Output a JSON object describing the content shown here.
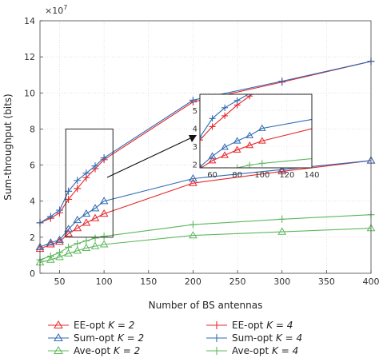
{
  "chart_data": {
    "type": "line",
    "title": "",
    "xlabel": "Number of BS antennas",
    "ylabel": "Sum-throughput (bits)",
    "y_multiplier_label": "×10",
    "y_multiplier_exp": "7",
    "xlim": [
      28,
      400
    ],
    "ylim": [
      0,
      14
    ],
    "grid": true,
    "x_ticks": [
      "50",
      "100",
      "150",
      "200",
      "250",
      "300",
      "350",
      "400"
    ],
    "x_tick_values": [
      50,
      100,
      150,
      200,
      250,
      300,
      350,
      400
    ],
    "y_ticks": [
      "0",
      "2",
      "4",
      "6",
      "8",
      "10",
      "12",
      "14"
    ],
    "y_tick_values": [
      0,
      2,
      4,
      6,
      8,
      10,
      12,
      14
    ],
    "legend_placement": "bottom",
    "legend": [
      {
        "text": "EE-opt ",
        "k": "K = 2",
        "series": 0
      },
      {
        "text": "EE-opt ",
        "k": "K = 4",
        "series": 1
      },
      {
        "text": "Sum-opt ",
        "k": "K = 2",
        "series": 2
      },
      {
        "text": "Sum-opt ",
        "k": "K = 4",
        "series": 3
      },
      {
        "text": "Ave-opt ",
        "k": "K = 2",
        "series": 4
      },
      {
        "text": "Ave-opt ",
        "k": "K = 4",
        "series": 5
      }
    ],
    "series": [
      {
        "name": "EE-opt K = 2",
        "color": "#e8262b",
        "marker": "triangle",
        "x": [
          28,
          40,
          50,
          60,
          70,
          80,
          90,
          100,
          200,
          300,
          400
        ],
        "y": [
          1.35,
          1.6,
          1.75,
          2.2,
          2.5,
          2.8,
          3.05,
          3.3,
          5.0,
          5.65,
          6.25
        ]
      },
      {
        "name": "EE-opt K = 4",
        "color": "#e8262b",
        "marker": "plus",
        "x": [
          28,
          40,
          50,
          60,
          70,
          80,
          90,
          100,
          200,
          300,
          400
        ],
        "y": [
          2.8,
          3.05,
          3.35,
          4.1,
          4.7,
          5.3,
          5.8,
          6.3,
          9.5,
          10.6,
          11.75
        ]
      },
      {
        "name": "Sum-opt K = 2",
        "color": "#2f6ab3",
        "marker": "triangle",
        "x": [
          28,
          40,
          50,
          60,
          70,
          80,
          90,
          100,
          200,
          300,
          400
        ],
        "y": [
          1.45,
          1.7,
          1.85,
          2.45,
          2.95,
          3.3,
          3.6,
          4.0,
          5.25,
          5.75,
          6.25
        ]
      },
      {
        "name": "Sum-opt K = 4",
        "color": "#2f6ab3",
        "marker": "plus",
        "x": [
          28,
          40,
          50,
          60,
          70,
          80,
          90,
          100,
          200,
          300,
          400
        ],
        "y": [
          2.8,
          3.15,
          3.5,
          4.55,
          5.15,
          5.55,
          5.95,
          6.4,
          9.6,
          10.65,
          11.75
        ]
      },
      {
        "name": "Ave-opt K = 2",
        "color": "#5cb85c",
        "marker": "triangle",
        "x": [
          28,
          40,
          50,
          60,
          70,
          80,
          90,
          100,
          200,
          300,
          400
        ],
        "y": [
          0.6,
          0.75,
          0.9,
          1.1,
          1.25,
          1.4,
          1.5,
          1.6,
          2.1,
          2.3,
          2.5
        ]
      },
      {
        "name": "Ave-opt K = 4",
        "color": "#5cb85c",
        "marker": "plus",
        "x": [
          28,
          40,
          50,
          60,
          70,
          80,
          90,
          100,
          200,
          300,
          400
        ],
        "y": [
          0.75,
          0.95,
          1.15,
          1.45,
          1.65,
          1.8,
          1.95,
          2.05,
          2.7,
          3.0,
          3.25
        ]
      }
    ],
    "inset": {
      "xlim": [
        50,
        140
      ],
      "ylim": [
        1.8,
        5.9
      ],
      "x_ticks": [
        "60",
        "80",
        "100",
        "120",
        "140"
      ],
      "x_tick_values": [
        60,
        80,
        100,
        120,
        140
      ],
      "y_ticks": [
        "2",
        "3",
        "4",
        "5"
      ],
      "y_tick_values": [
        2,
        3,
        4,
        5
      ]
    },
    "zoom_box": {
      "x": [
        57,
        110
      ],
      "y": [
        2.0,
        8.0
      ]
    }
  }
}
